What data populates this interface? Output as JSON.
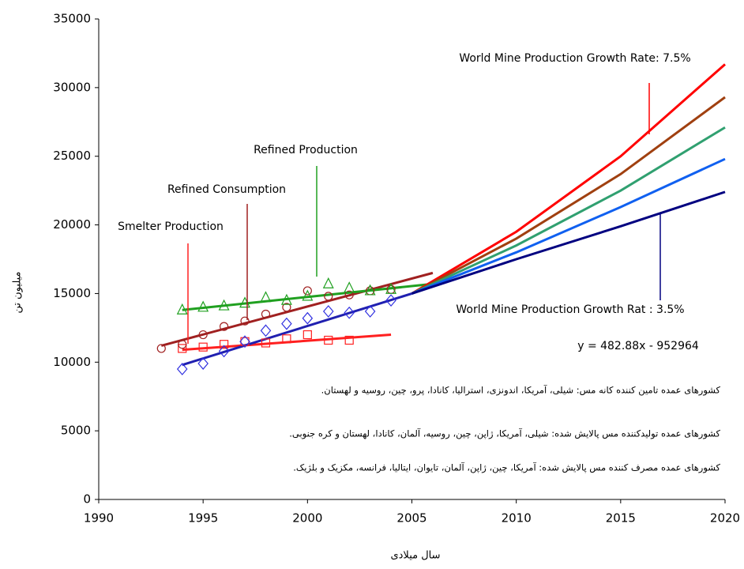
{
  "chart_data": {
    "type": "scatter",
    "xlim": [
      1990,
      2020
    ],
    "xticks": [
      1990,
      1995,
      2000,
      2005,
      2010,
      2015,
      2020
    ],
    "ylim": [
      0,
      35000
    ],
    "yticks": [
      0,
      5000,
      10000,
      15000,
      20000,
      25000,
      30000,
      35000
    ],
    "xlabel": "سال میلادی",
    "ylabel": "میلیون تن",
    "series": [
      {
        "name": "Smelter Production",
        "color": "#ff2020",
        "marker": "square",
        "x": [
          1994,
          1995,
          1996,
          1997,
          1998,
          1999,
          2000,
          2001,
          2002
        ],
        "values": [
          11000,
          11100,
          11300,
          11500,
          11400,
          11700,
          12000,
          11600,
          11600
        ]
      },
      {
        "name": "Refined Consumption",
        "color": "#a02020",
        "marker": "circle",
        "x": [
          1993,
          1994,
          1995,
          1996,
          1997,
          1998,
          1999,
          2000,
          2001,
          2002,
          2003,
          2004
        ],
        "values": [
          11000,
          11300,
          12000,
          12600,
          13000,
          13500,
          14000,
          15200,
          14800,
          14900,
          15200,
          15300
        ]
      },
      {
        "name": "Refined Production",
        "color": "#20a020",
        "marker": "triangle",
        "x": [
          1994,
          1995,
          1996,
          1997,
          1998,
          1999,
          2000,
          2001,
          2002,
          2003,
          2004
        ],
        "values": [
          13800,
          14000,
          14100,
          14300,
          14700,
          14500,
          14800,
          15700,
          15400,
          15200,
          15300
        ]
      },
      {
        "name": "World Mine Production",
        "color": "#3030e0",
        "marker": "diamond",
        "x": [
          1994,
          1995,
          1996,
          1997,
          1998,
          1999,
          2000,
          2001,
          2002,
          2003,
          2004
        ],
        "values": [
          9500,
          9900,
          10800,
          11500,
          12300,
          12800,
          13200,
          13700,
          13600,
          13700,
          14500
        ]
      }
    ],
    "trendlines": [
      {
        "color": "#ff2020",
        "x": [
          1994,
          2004
        ],
        "values": [
          10900,
          12000
        ]
      },
      {
        "color": "#a02020",
        "x": [
          1993,
          2006
        ],
        "values": [
          11200,
          16500
        ]
      },
      {
        "color": "#20a020",
        "x": [
          1994,
          2006
        ],
        "values": [
          13800,
          15700
        ]
      },
      {
        "color": "#2020b0",
        "x": [
          1994,
          2005
        ],
        "values": [
          9800,
          15000
        ]
      }
    ],
    "projections": [
      {
        "color": "#ff0000",
        "x": [
          2005,
          2010,
          2015,
          2020
        ],
        "values": [
          15000,
          19500,
          25000,
          31700
        ]
      },
      {
        "color": "#a04010",
        "x": [
          2005,
          2010,
          2015,
          2020
        ],
        "values": [
          15000,
          19000,
          23700,
          29300
        ]
      },
      {
        "color": "#30a070",
        "x": [
          2005,
          2010,
          2015,
          2020
        ],
        "values": [
          15000,
          18500,
          22500,
          27100
        ]
      },
      {
        "color": "#1060f0",
        "x": [
          2005,
          2010,
          2015,
          2020
        ],
        "values": [
          15000,
          18000,
          21300,
          24800
        ]
      },
      {
        "color": "#000080",
        "x": [
          2005,
          2010,
          2015,
          2020
        ],
        "values": [
          15000,
          17500,
          19900,
          22400
        ]
      }
    ],
    "annotations": [
      "World Mine Production Growth Rate: 7.5%",
      "World Mine Production Growth Rat : 3.5%",
      "y = 482.88x - 952964"
    ],
    "notes": [
      "کشورهای عمده تامین کننده کانه مس:          شیلی، آمریکا، اندونزی، استرالیا، کانادا، پرو، چین، روسیه و لهستان.",
      "کشورهای عمده تولیدکننده مس پالایش شده: شیلی، آمریکا، ژاپن، چین، روسیه، آلمان، کانادا، لهستان و کره جنوبی.",
      "کشورهای عمده مصرف کننده مس پالایش شده: آمریکا، چین، ژاپن، آلمان، تایوان، ایتالیا، فرانسه، مکزیک و بلژیک."
    ]
  }
}
